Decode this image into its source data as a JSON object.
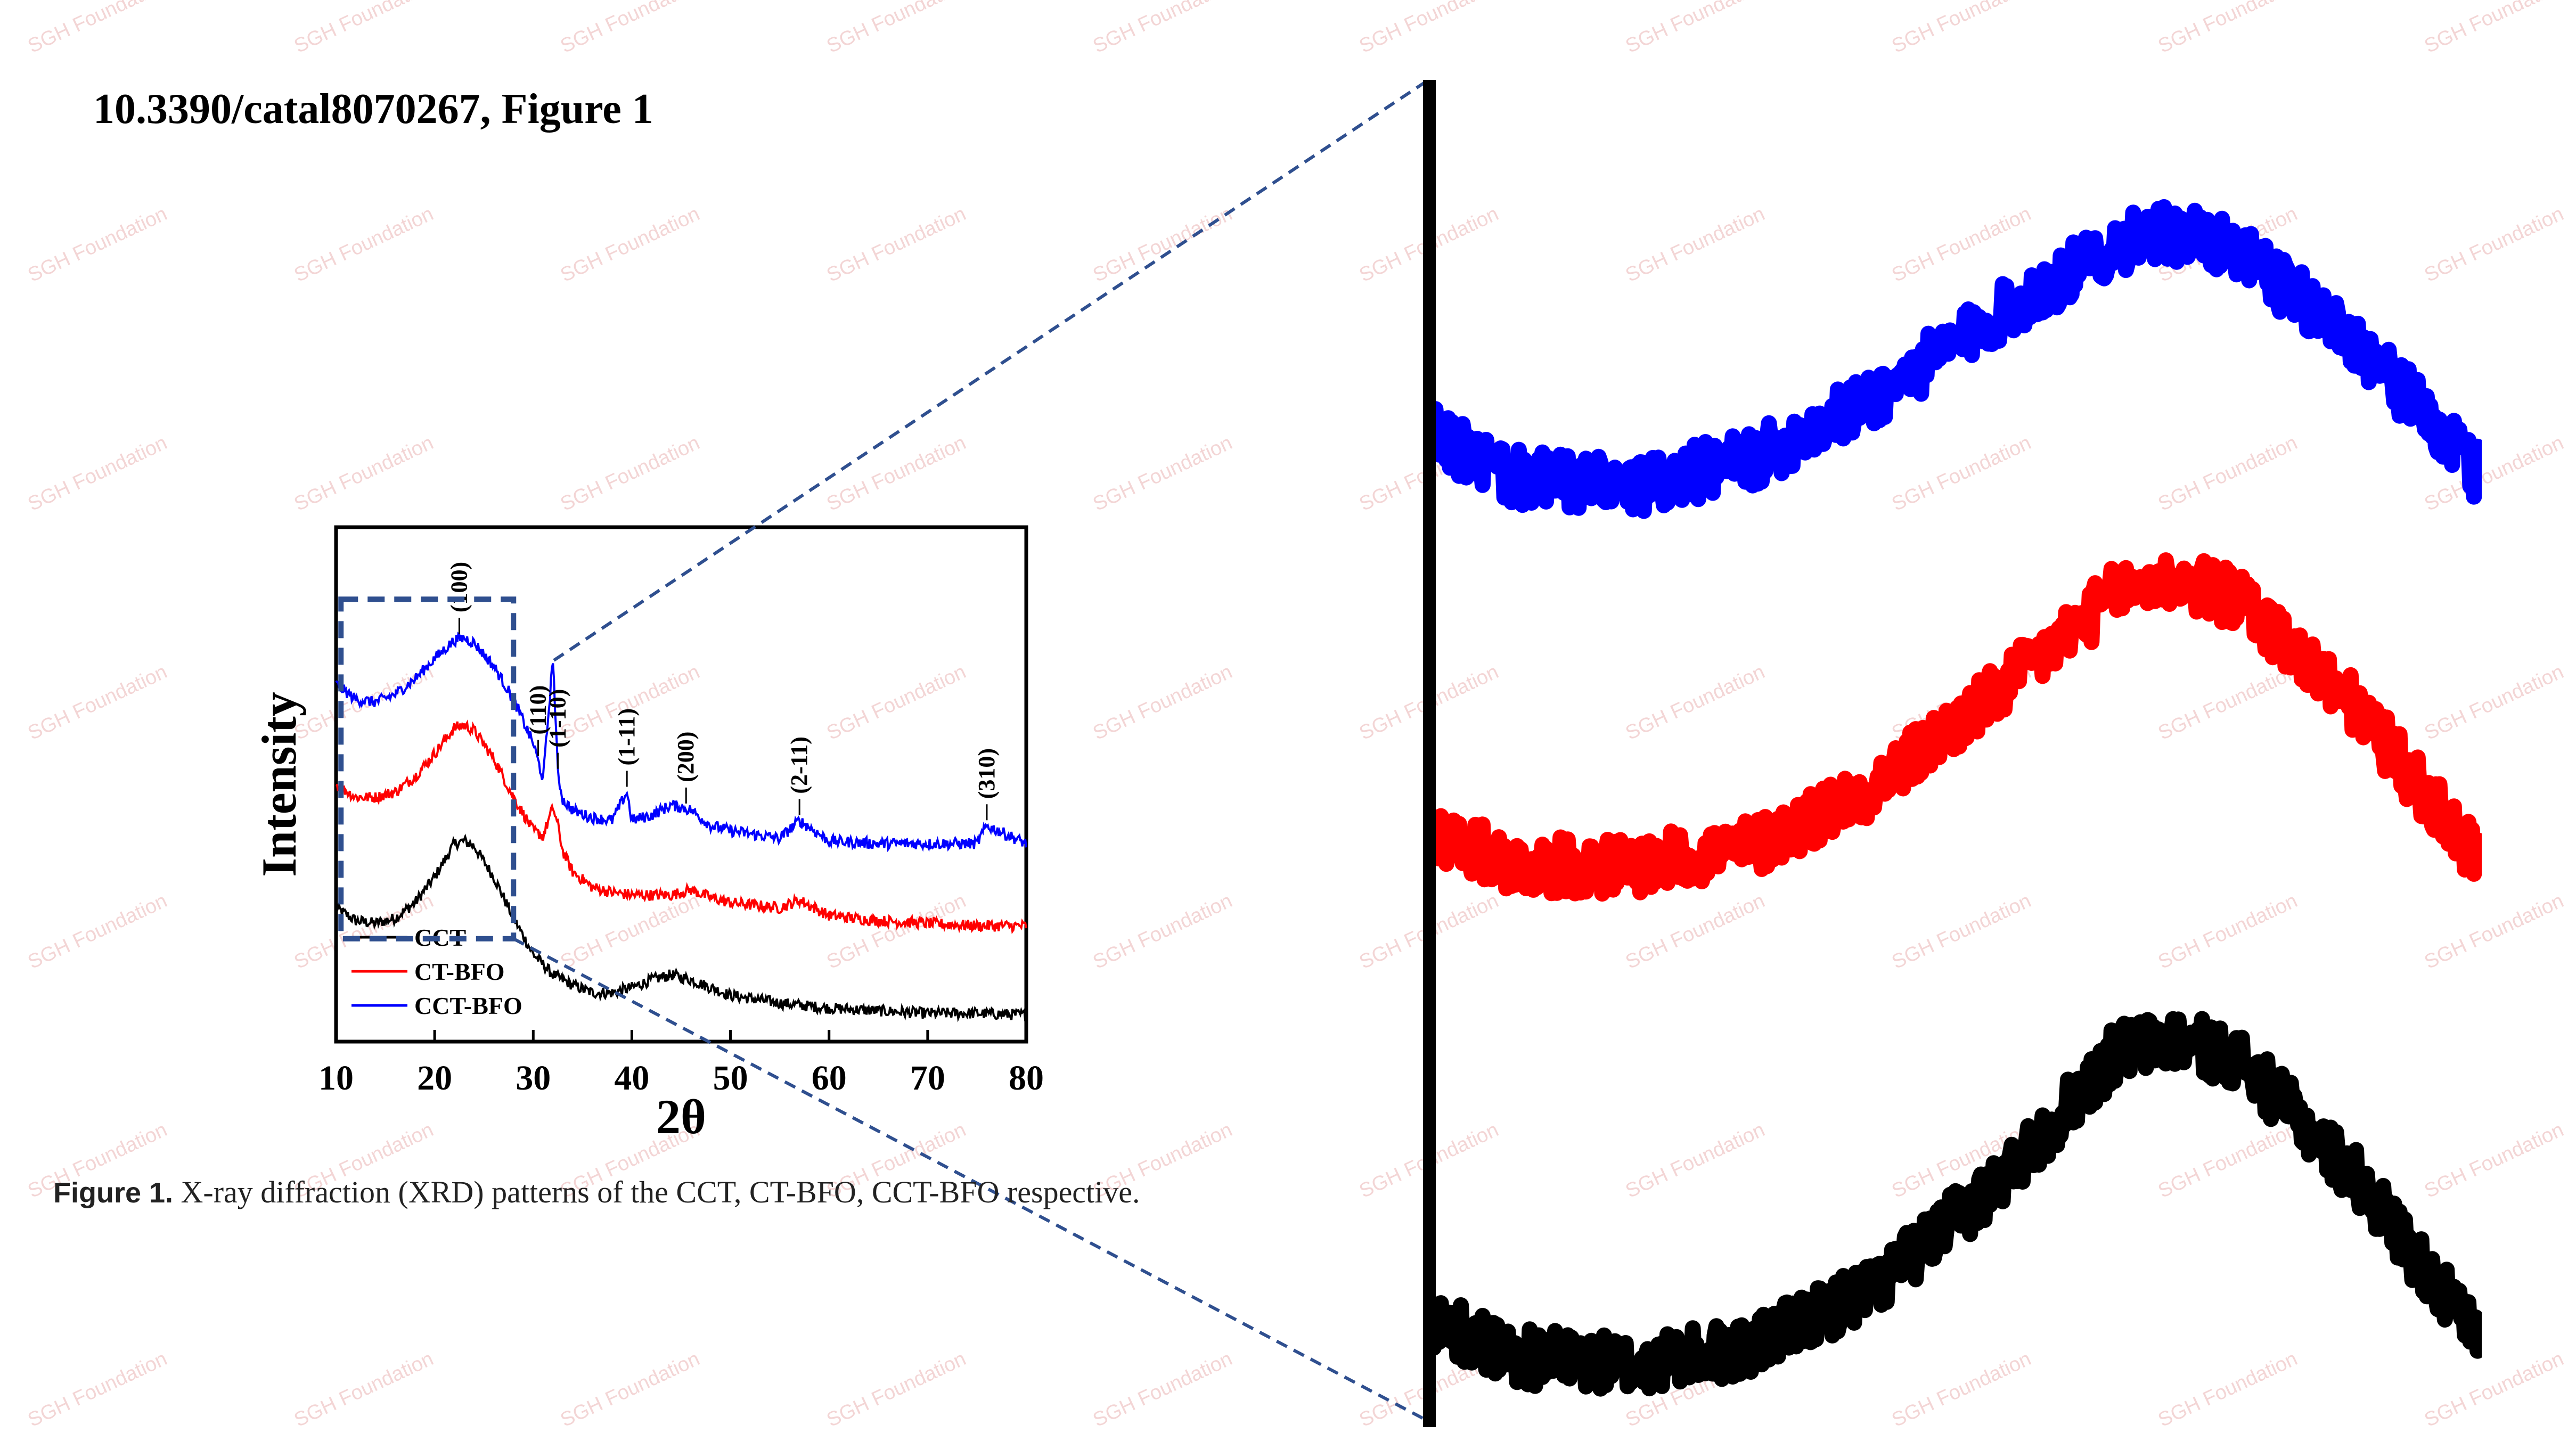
{
  "header": {
    "title": "10.3390/catal8070267, Figure 1"
  },
  "caption": {
    "label": "Figure 1.",
    "text": " X-ray diffraction (XRD) patterns of the CCT, CT-BFO, CCT-BFO respective."
  },
  "watermark": {
    "text": "SGH Foundation"
  },
  "colors": {
    "CCT": "#000000",
    "CT-BFO": "#ff0000",
    "CCT-BFO": "#0000ff",
    "box": "#2f4f8f"
  },
  "chart_data": [
    {
      "type": "line",
      "title": "",
      "xlabel": "2θ",
      "ylabel": "Intensity",
      "xlim": [
        10,
        80
      ],
      "ylim": [
        0,
        10
      ],
      "xticks": [
        10,
        20,
        30,
        40,
        50,
        60,
        70,
        80
      ],
      "legend": {
        "placement": "bottom-left",
        "entries": [
          "CCT",
          "CT-BFO",
          "CCT-BFO"
        ]
      },
      "series": [
        {
          "name": "CCT",
          "color": "#000000",
          "x": [
            10,
            12,
            14,
            16,
            18,
            20,
            22,
            23,
            24,
            26,
            28,
            30,
            32,
            34,
            36,
            38,
            40,
            42,
            44,
            46,
            48,
            50,
            55,
            60,
            65,
            70,
            75,
            80
          ],
          "y": [
            2.6,
            2.35,
            2.3,
            2.4,
            2.7,
            3.2,
            3.85,
            3.9,
            3.8,
            3.2,
            2.4,
            1.7,
            1.3,
            1.1,
            0.95,
            0.95,
            1.05,
            1.2,
            1.3,
            1.2,
            1.05,
            0.9,
            0.75,
            0.65,
            0.6,
            0.55,
            0.55,
            0.52
          ]
        },
        {
          "name": "CT-BFO",
          "color": "#ff0000",
          "x": [
            10,
            12,
            14,
            16,
            18,
            20,
            22,
            23,
            24,
            26,
            28,
            30,
            31,
            32,
            32.5,
            33,
            34,
            36,
            38,
            40,
            44,
            46,
            48,
            50,
            55,
            57,
            60,
            65,
            70,
            75,
            80
          ],
          "y": [
            5.0,
            4.75,
            4.75,
            4.85,
            5.15,
            5.6,
            6.1,
            6.15,
            6.05,
            5.5,
            4.75,
            4.1,
            4.0,
            4.55,
            4.2,
            3.7,
            3.3,
            3.0,
            2.9,
            2.85,
            2.85,
            2.95,
            2.8,
            2.7,
            2.6,
            2.75,
            2.45,
            2.35,
            2.3,
            2.25,
            2.25
          ]
        },
        {
          "name": "CCT-BFO",
          "color": "#0000ff",
          "x": [
            10,
            12,
            14,
            16,
            18,
            20,
            22,
            23,
            24,
            26,
            28,
            30,
            31,
            32,
            32.5,
            33,
            34,
            36,
            38,
            39.5,
            40,
            42,
            44,
            45,
            46,
            48,
            50,
            55,
            57,
            60,
            65,
            70,
            75,
            76,
            80
          ],
          "y": [
            6.95,
            6.65,
            6.6,
            6.75,
            7.05,
            7.45,
            7.8,
            7.85,
            7.75,
            7.3,
            6.65,
            5.8,
            5.1,
            7.45,
            5.2,
            4.7,
            4.5,
            4.35,
            4.3,
            4.85,
            4.3,
            4.4,
            4.6,
            4.55,
            4.5,
            4.2,
            4.1,
            3.95,
            4.3,
            3.9,
            3.85,
            3.85,
            3.85,
            4.2,
            3.85
          ]
        }
      ],
      "annotations": [
        {
          "label": "(100)",
          "x": 22.5
        },
        {
          "label": "(110)",
          "x": 30.5
        },
        {
          "label": "(1-10)",
          "x": 32.5
        },
        {
          "label": "(1-11)",
          "x": 39.5
        },
        {
          "label": "(200)",
          "x": 45.5
        },
        {
          "label": "(2-11)",
          "x": 57
        },
        {
          "label": "(310)",
          "x": 76
        }
      ],
      "zoom_region": {
        "x": [
          10.5,
          28
        ],
        "y": [
          2.0,
          8.6
        ]
      }
    }
  ]
}
